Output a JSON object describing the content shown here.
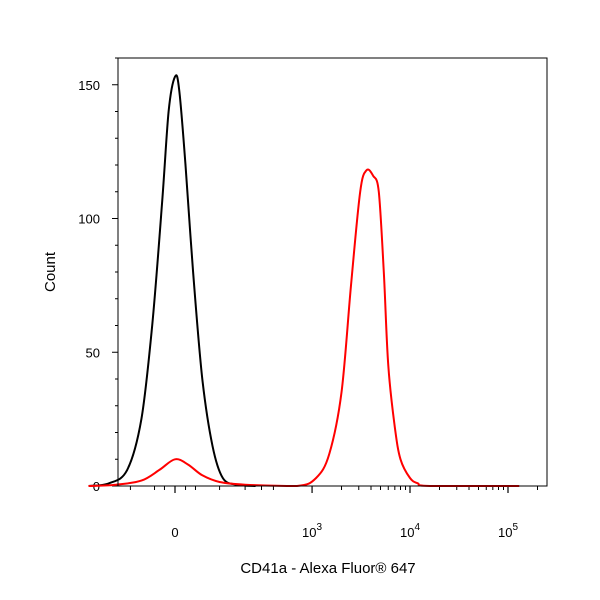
{
  "chart_data": {
    "type": "line",
    "subtype": "flow-cytometry-histogram",
    "xlabel": "CD41a - Alexa Fluor® 647",
    "ylabel": "Count",
    "x_scale": "biexponential",
    "ylim": [
      0,
      160
    ],
    "x_ticks": [
      {
        "value": 0,
        "label": "0"
      },
      {
        "value": 1000,
        "label": "10",
        "sup": "3"
      },
      {
        "value": 10000,
        "label": "10",
        "sup": "4"
      },
      {
        "value": 100000,
        "label": "10",
        "sup": "5"
      }
    ],
    "y_ticks": [
      0,
      50,
      100,
      150
    ],
    "grid": false,
    "legend": "none",
    "series": [
      {
        "color": "#000000",
        "points": [
          [
            -300,
            0
          ],
          [
            -180,
            1
          ],
          [
            -110,
            6
          ],
          [
            -70,
            25
          ],
          [
            -45,
            60
          ],
          [
            -25,
            105
          ],
          [
            -12,
            140
          ],
          [
            0,
            153
          ],
          [
            8,
            148
          ],
          [
            20,
            120
          ],
          [
            35,
            80
          ],
          [
            55,
            40
          ],
          [
            80,
            15
          ],
          [
            110,
            3
          ],
          [
            160,
            0.5
          ],
          [
            260,
            0
          ]
        ]
      },
      {
        "color": "#ff0000",
        "points": [
          [
            -300,
            0
          ],
          [
            -150,
            0.5
          ],
          [
            -70,
            2
          ],
          [
            -30,
            6
          ],
          [
            0,
            10
          ],
          [
            25,
            8
          ],
          [
            55,
            4
          ],
          [
            100,
            1.5
          ],
          [
            200,
            0.5
          ],
          [
            700,
            0
          ],
          [
            1100,
            3
          ],
          [
            1500,
            12
          ],
          [
            2000,
            35
          ],
          [
            2500,
            75
          ],
          [
            3100,
            110
          ],
          [
            3600,
            118
          ],
          [
            4200,
            116
          ],
          [
            4800,
            110
          ],
          [
            5400,
            80
          ],
          [
            6000,
            45
          ],
          [
            7000,
            22
          ],
          [
            8000,
            10
          ],
          [
            10000,
            3
          ],
          [
            12000,
            1
          ],
          [
            16000,
            0
          ],
          [
            130000,
            0
          ]
        ]
      }
    ]
  }
}
